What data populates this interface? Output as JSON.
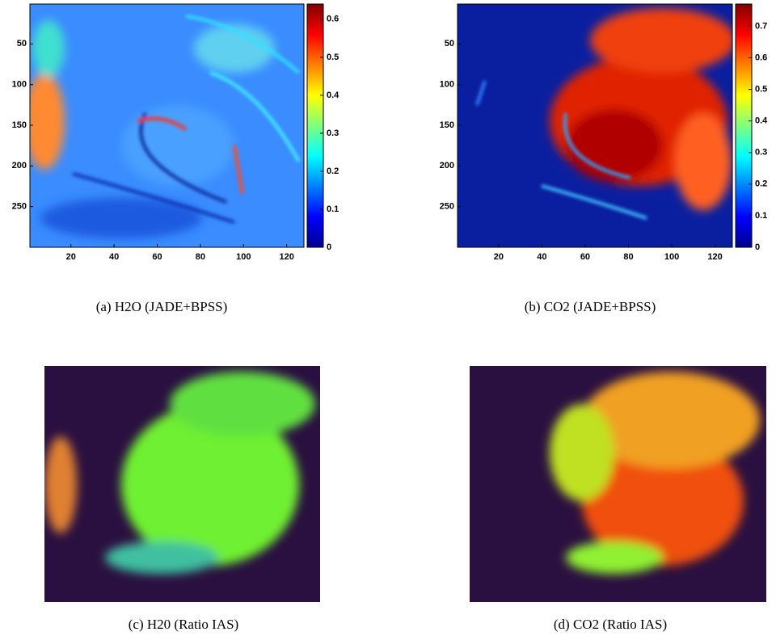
{
  "chart_data": [
    {
      "type": "heatmap",
      "caption": "(a)  H2O (JADE+BPSS)",
      "colormap": "jet",
      "xlim": [
        1,
        128
      ],
      "ylim": [
        1,
        300
      ],
      "xticks": [
        20,
        40,
        60,
        80,
        100,
        120
      ],
      "yticks": [
        50,
        100,
        150,
        200,
        250
      ],
      "colorbar_lim": [
        0,
        0.64
      ],
      "colorbar_ticks": [
        0,
        0.1,
        0.2,
        0.3,
        0.4,
        0.5,
        0.6
      ]
    },
    {
      "type": "heatmap",
      "caption": "(b)  CO2 (JADE+BPSS)",
      "colormap": "jet",
      "xlim": [
        1,
        128
      ],
      "ylim": [
        1,
        300
      ],
      "xticks": [
        20,
        40,
        60,
        80,
        100,
        120
      ],
      "yticks": [
        50,
        100,
        150,
        200,
        250
      ],
      "colorbar_lim": [
        0,
        0.77
      ],
      "colorbar_ticks": [
        0,
        0.1,
        0.2,
        0.3,
        0.4,
        0.5,
        0.6,
        0.7
      ]
    },
    {
      "type": "image",
      "caption": "(c)  H20 (Ratio IAS)"
    },
    {
      "type": "image",
      "caption": "(d)  CO2 (Ratio IAS)"
    }
  ]
}
